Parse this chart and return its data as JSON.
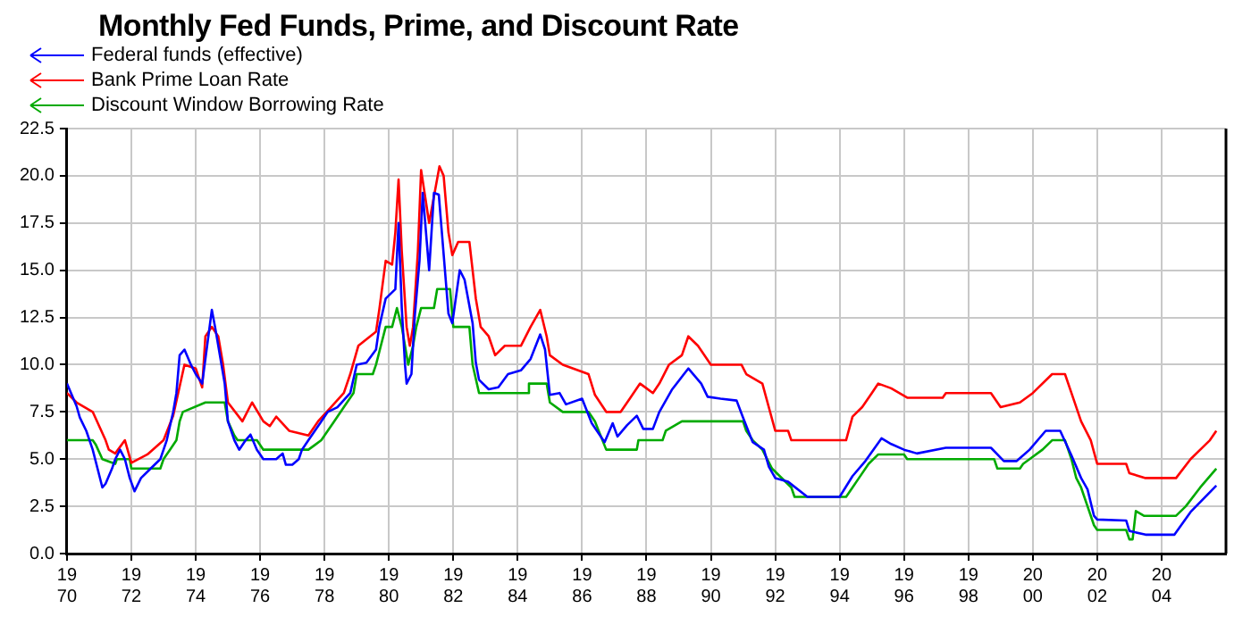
{
  "chart_data": {
    "type": "line",
    "title": "Monthly Fed Funds, Prime, and Discount Rate",
    "series": [
      {
        "name": "Federal funds (effective)",
        "color": "#0000ff",
        "x": [
          1970.0,
          1970.3,
          1970.4,
          1970.6,
          1970.8,
          1970.95,
          1971.1,
          1971.2,
          1971.4,
          1971.5,
          1971.65,
          1971.8,
          1971.95,
          1972.1,
          1972.3,
          1972.6,
          1972.9,
          1973.1,
          1973.3,
          1973.4,
          1973.5,
          1973.65,
          1973.85,
          1974.0,
          1974.2,
          1974.5,
          1974.6,
          1974.75,
          1974.9,
          1975.0,
          1975.2,
          1975.35,
          1975.55,
          1975.7,
          1975.9,
          1976.1,
          1976.5,
          1976.7,
          1976.8,
          1977.0,
          1977.2,
          1977.3,
          1977.5,
          1977.7,
          1977.9,
          1978.1,
          1978.4,
          1978.8,
          1979.0,
          1979.3,
          1979.6,
          1979.7,
          1979.9,
          1980.2,
          1980.3,
          1980.4,
          1980.5,
          1980.55,
          1980.7,
          1980.8,
          1980.95,
          1981.05,
          1981.25,
          1981.4,
          1981.55,
          1981.75,
          1981.85,
          1981.97,
          1982.2,
          1982.35,
          1982.6,
          1982.7,
          1982.8,
          1983.1,
          1983.4,
          1983.7,
          1984.1,
          1984.4,
          1984.7,
          1984.85,
          1984.95,
          1985.0,
          1985.3,
          1985.5,
          1986.0,
          1986.3,
          1986.7,
          1986.95,
          1987.1,
          1987.4,
          1987.7,
          1987.9,
          1988.2,
          1988.4,
          1988.8,
          1989.3,
          1989.7,
          1989.9,
          1990.3,
          1990.8,
          1991.0,
          1991.3,
          1991.65,
          1991.8,
          1992.0,
          1992.4,
          1993.0,
          1994.0,
          1994.4,
          1994.8,
          1995.3,
          1995.6,
          1996.0,
          1996.4,
          1997.3,
          1998.7,
          1999.1,
          1999.5,
          1999.9,
          2000.4,
          2000.85,
          2001.2,
          2001.5,
          2001.7,
          2001.9,
          2002.0,
          2002.9,
          2003.0,
          2003.5,
          2004.4,
          2004.9,
          2005.7
        ],
        "values": [
          9.0,
          7.8,
          7.2,
          6.5,
          5.5,
          4.5,
          3.5,
          3.7,
          4.5,
          5.0,
          5.5,
          5.0,
          4.0,
          3.3,
          4.0,
          4.5,
          5.0,
          6.0,
          7.5,
          8.5,
          10.5,
          10.8,
          10.0,
          9.5,
          9.0,
          12.9,
          12.0,
          10.5,
          9.0,
          7.0,
          6.0,
          5.5,
          6.0,
          6.3,
          5.5,
          5.0,
          5.0,
          5.3,
          4.7,
          4.7,
          5.0,
          5.5,
          6.0,
          6.5,
          7.0,
          7.5,
          7.75,
          8.5,
          10.0,
          10.1,
          10.8,
          12.0,
          13.5,
          14.0,
          17.5,
          13.0,
          10.0,
          9.0,
          9.5,
          12.5,
          15.5,
          19.1,
          15.0,
          19.1,
          19.0,
          14.8,
          12.7,
          12.2,
          15.0,
          14.5,
          12.2,
          10.1,
          9.2,
          8.7,
          8.8,
          9.5,
          9.7,
          10.3,
          11.6,
          10.8,
          9.2,
          8.4,
          8.5,
          7.9,
          8.2,
          6.9,
          5.9,
          6.9,
          6.2,
          6.8,
          7.3,
          6.6,
          6.6,
          7.5,
          8.7,
          9.8,
          9.0,
          8.3,
          8.2,
          8.1,
          7.2,
          5.9,
          5.5,
          4.6,
          4.0,
          3.8,
          3.0,
          3.0,
          4.1,
          4.9,
          6.1,
          5.8,
          5.5,
          5.3,
          5.6,
          5.6,
          4.9,
          4.9,
          5.5,
          6.5,
          6.5,
          5.2,
          4.0,
          3.4,
          2.0,
          1.8,
          1.75,
          1.2,
          1.0,
          1.0,
          2.2,
          3.6
        ]
      },
      {
        "name": "Bank Prime Loan Rate",
        "color": "#ff0000",
        "x": [
          1970.0,
          1970.3,
          1970.8,
          1971.2,
          1971.3,
          1971.5,
          1971.8,
          1972.0,
          1972.5,
          1973.0,
          1973.3,
          1973.65,
          1974.0,
          1974.2,
          1974.3,
          1974.5,
          1974.7,
          1974.85,
          1975.0,
          1975.45,
          1975.75,
          1976.1,
          1976.3,
          1976.5,
          1976.9,
          1977.5,
          1977.8,
          1978.2,
          1978.6,
          1978.8,
          1979.05,
          1979.6,
          1979.7,
          1979.9,
          1980.1,
          1980.2,
          1980.3,
          1980.4,
          1980.55,
          1980.65,
          1980.75,
          1980.9,
          1981.0,
          1981.25,
          1981.57,
          1981.7,
          1981.85,
          1981.97,
          1982.15,
          1982.5,
          1982.6,
          1982.7,
          1982.85,
          1983.1,
          1983.3,
          1983.6,
          1984.1,
          1984.4,
          1984.7,
          1984.9,
          1985.0,
          1985.4,
          1986.2,
          1986.4,
          1986.75,
          1987.2,
          1987.5,
          1987.8,
          1988.0,
          1988.2,
          1988.4,
          1988.7,
          1989.1,
          1989.3,
          1989.6,
          1990.0,
          1990.95,
          1991.1,
          1991.6,
          1992.0,
          1992.4,
          1992.5,
          1994.2,
          1994.4,
          1994.7,
          1995.0,
          1995.2,
          1995.6,
          1996.1,
          1997.2,
          1997.3,
          1998.7,
          1999.0,
          1999.6,
          2000.0,
          2000.6,
          2001.0,
          2001.2,
          2001.5,
          2001.8,
          2002.0,
          2002.9,
          2003.0,
          2003.5,
          2004.45,
          2004.9,
          2005.5,
          2005.7
        ],
        "values": [
          8.5,
          8.0,
          7.5,
          6.0,
          5.5,
          5.3,
          6.0,
          4.8,
          5.25,
          6.0,
          7.3,
          10.0,
          9.8,
          8.8,
          11.5,
          12.0,
          11.5,
          10.0,
          8.0,
          7.0,
          8.0,
          7.0,
          6.75,
          7.25,
          6.5,
          6.25,
          7.0,
          7.75,
          8.5,
          9.5,
          11.0,
          11.75,
          12.9,
          15.5,
          15.3,
          17.0,
          19.8,
          16.0,
          12.0,
          11.0,
          12.0,
          16.0,
          20.3,
          17.5,
          20.5,
          20.0,
          17.0,
          15.8,
          16.5,
          16.5,
          15.0,
          13.5,
          12.0,
          11.5,
          10.5,
          11.0,
          11.0,
          12.0,
          12.9,
          11.5,
          10.5,
          10.0,
          9.5,
          8.4,
          7.5,
          7.5,
          8.25,
          9.0,
          8.75,
          8.5,
          9.0,
          10.0,
          10.5,
          11.5,
          11.0,
          10.0,
          10.0,
          9.5,
          9.0,
          6.5,
          6.5,
          6.0,
          6.0,
          7.25,
          7.75,
          8.5,
          9.0,
          8.75,
          8.25,
          8.25,
          8.5,
          8.5,
          7.75,
          8.0,
          8.5,
          9.5,
          9.5,
          8.5,
          7.0,
          6.0,
          4.75,
          4.75,
          4.25,
          4.0,
          4.0,
          5.0,
          6.0,
          6.5
        ]
      },
      {
        "name": "Discount Window Borrowing Rate",
        "color": "#00aa00",
        "x": [
          1970.0,
          1970.8,
          1970.9,
          1971.1,
          1971.5,
          1971.55,
          1971.95,
          1972.0,
          1972.9,
          1973.0,
          1973.2,
          1973.4,
          1973.5,
          1973.6,
          1974.3,
          1974.9,
          1975.0,
          1975.2,
          1975.3,
          1975.9,
          1976.1,
          1977.5,
          1977.7,
          1977.9,
          1978.1,
          1978.3,
          1978.6,
          1978.9,
          1979.0,
          1979.5,
          1979.6,
          1979.75,
          1979.9,
          1980.1,
          1980.25,
          1980.4,
          1980.5,
          1980.6,
          1980.75,
          1980.85,
          1981.0,
          1981.4,
          1981.5,
          1981.9,
          1981.95,
          1982.0,
          1982.5,
          1982.6,
          1982.8,
          1984.3,
          1984.35,
          1984.9,
          1985.0,
          1985.4,
          1986.2,
          1986.4,
          1986.75,
          1987.7,
          1987.75,
          1988.5,
          1988.6,
          1989.1,
          1991.0,
          1991.1,
          1991.3,
          1991.6,
          1991.9,
          1992.5,
          1992.6,
          1994.2,
          1994.4,
          1994.6,
          1994.9,
          1995.2,
          1996.0,
          1996.1,
          1998.8,
          1998.9,
          1999.6,
          1999.7,
          1999.9,
          2000.3,
          2000.6,
          2001.0,
          2001.2,
          2001.35,
          2001.5,
          2001.7,
          2001.9,
          2002.0,
          2002.9,
          2003.0,
          2003.1,
          2003.2,
          2003.45,
          2004.45,
          2004.75,
          2005.2,
          2005.7
        ],
        "values": [
          6.0,
          6.0,
          5.75,
          5.0,
          4.75,
          5.0,
          5.0,
          4.5,
          4.5,
          5.0,
          5.5,
          6.0,
          7.0,
          7.5,
          8.0,
          8.0,
          7.0,
          6.25,
          6.0,
          6.0,
          5.5,
          5.5,
          5.75,
          6.0,
          6.5,
          7.0,
          7.75,
          8.5,
          9.5,
          9.5,
          10.0,
          11.0,
          12.0,
          12.0,
          13.0,
          12.0,
          11.0,
          10.0,
          11.0,
          12.0,
          13.0,
          13.0,
          14.0,
          14.0,
          13.0,
          12.0,
          12.0,
          10.0,
          8.5,
          8.5,
          9.0,
          9.0,
          8.0,
          7.5,
          7.5,
          7.0,
          5.5,
          5.5,
          6.0,
          6.0,
          6.5,
          7.0,
          7.0,
          6.5,
          6.0,
          5.5,
          4.5,
          3.5,
          3.0,
          3.0,
          3.5,
          4.0,
          4.75,
          5.25,
          5.25,
          5.0,
          5.0,
          4.5,
          4.5,
          4.75,
          5.0,
          5.5,
          6.0,
          6.0,
          5.0,
          4.0,
          3.5,
          2.5,
          1.5,
          1.25,
          1.25,
          0.75,
          0.75,
          2.25,
          2.0,
          2.0,
          2.5,
          3.5,
          4.5
        ]
      }
    ],
    "xlim": [
      1970,
      2006
    ],
    "xticks": [
      1970,
      1972,
      1974,
      1976,
      1978,
      1980,
      1982,
      1984,
      1986,
      1988,
      1990,
      1992,
      1994,
      1996,
      1998,
      2000,
      2002,
      2004
    ],
    "ylim": [
      0,
      22.5
    ],
    "yticks": [
      {
        "value": 0,
        "label": "0.0"
      },
      2.5,
      {
        "value": 5,
        "label": "5.0"
      },
      7.5,
      {
        "value": 10,
        "label": "10.0"
      },
      12.5,
      {
        "value": 15,
        "label": "15.0"
      },
      17.5,
      {
        "value": 20,
        "label": "20.0"
      },
      22.5
    ],
    "grid": true,
    "legend": "top left",
    "marker": "none",
    "line_style": "solid"
  }
}
